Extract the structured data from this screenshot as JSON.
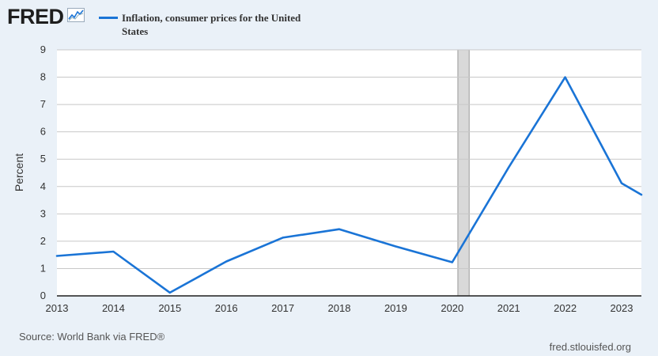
{
  "header": {
    "logo_text": "FRED",
    "logo_icon": "line-chart-icon"
  },
  "source": "Source: World Bank via FRED®",
  "site": "fred.stlouisfed.org",
  "colors": {
    "series": "#1a74d6",
    "background": "#eaf1f8",
    "plot_area": "#ffffff",
    "grid": "#c8c8c8",
    "recession": "#d9d9d9"
  },
  "chart_data": {
    "type": "line",
    "title": "",
    "xlabel": "",
    "ylabel": "Percent",
    "ylim": [
      0,
      9
    ],
    "xlim": [
      2013,
      2023.35
    ],
    "yticks": [
      "0",
      "1",
      "2",
      "3",
      "4",
      "5",
      "6",
      "7",
      "8",
      "9"
    ],
    "xticks": [
      "2013",
      "2014",
      "2015",
      "2016",
      "2017",
      "2018",
      "2019",
      "2020",
      "2021",
      "2022",
      "2023"
    ],
    "grid": true,
    "legend_position": "top-left",
    "recession_shading": [
      {
        "start": 2020.1,
        "end": 2020.3
      }
    ],
    "series": [
      {
        "name": "Inflation, consumer prices for the United States",
        "x": [
          2013,
          2014,
          2015,
          2016,
          2017,
          2018,
          2019,
          2020,
          2021,
          2022,
          2023
        ],
        "values": [
          1.46,
          1.62,
          0.12,
          1.26,
          2.13,
          2.44,
          1.81,
          1.23,
          4.7,
          8.0,
          4.12
        ],
        "tail": {
          "x": 2023.35,
          "value": 3.7
        }
      }
    ]
  }
}
